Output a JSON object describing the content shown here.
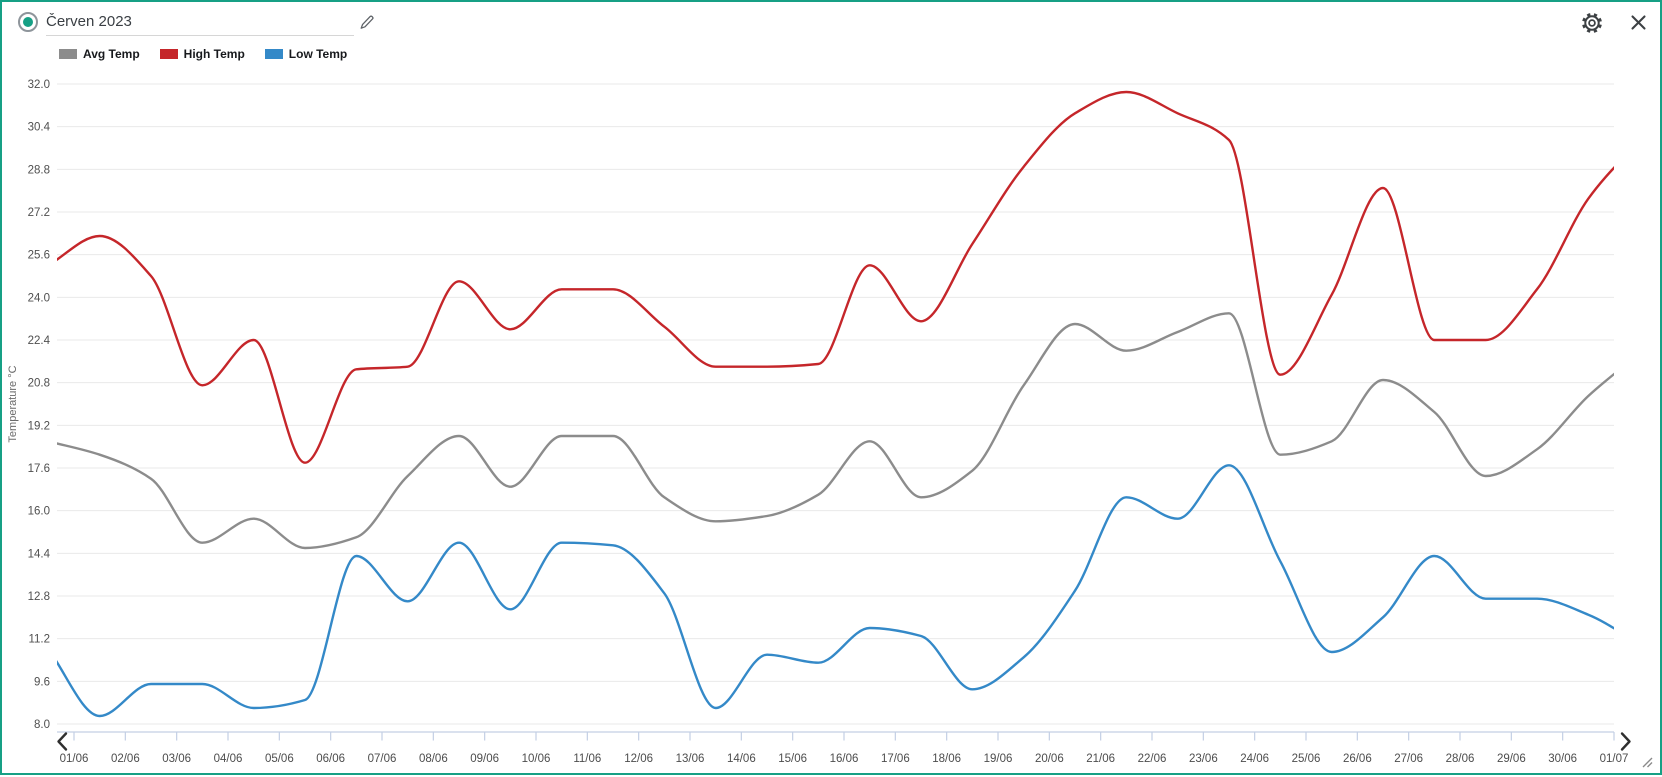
{
  "header": {
    "title_value": "Červen 2023",
    "icons": {
      "marker": "radio-selected",
      "edit": "pencil",
      "settings": "gear",
      "close": "x",
      "nav_left": "chevron-left",
      "nav_right": "chevron-right",
      "resize": "diagonal-grip"
    }
  },
  "legend": {
    "items": [
      {
        "label": "Avg Temp",
        "color": "#8c8c8c"
      },
      {
        "label": "High Temp",
        "color": "#c5262a"
      },
      {
        "label": "Low Temp",
        "color": "#3489c8"
      }
    ]
  },
  "chart_data": {
    "type": "line",
    "title": "Červen 2023",
    "ylabel": "Temperature °C",
    "ylim": [
      8.0,
      32.0
    ],
    "ytick_labels": [
      "32.0",
      "30.4",
      "28.8",
      "27.2",
      "25.6",
      "24.0",
      "22.4",
      "20.8",
      "19.2",
      "17.6",
      "16.0",
      "14.4",
      "12.8",
      "11.2",
      "9.6",
      "8.0"
    ],
    "x_tick_labels": [
      "01/06",
      "02/06",
      "03/06",
      "04/06",
      "05/06",
      "06/06",
      "07/06",
      "08/06",
      "09/06",
      "10/06",
      "11/06",
      "12/06",
      "13/06",
      "14/06",
      "15/06",
      "16/06",
      "17/06",
      "18/06",
      "19/06",
      "20/06",
      "21/06",
      "22/06",
      "23/06",
      "24/06",
      "25/06",
      "26/06",
      "27/06",
      "28/06",
      "29/06",
      "30/06",
      "01/07"
    ],
    "grid": "horizontal",
    "legend_position": "top-left",
    "interpolation": "monotone",
    "series": [
      {
        "name": "Avg Temp",
        "color": "#8c8c8c",
        "values": [
          18.1,
          17.2,
          14.8,
          15.7,
          14.6,
          15.0,
          17.3,
          18.8,
          16.9,
          18.8,
          18.8,
          16.5,
          15.6,
          15.8,
          16.6,
          18.6,
          16.5,
          17.5,
          20.7,
          23.0,
          22.0,
          22.7,
          23.4,
          18.1,
          18.6,
          20.9,
          19.7,
          17.3,
          18.3,
          20.3
        ],
        "lead_in": 18.6,
        "lead_out": 21.9
      },
      {
        "name": "High Temp",
        "color": "#c5262a",
        "values": [
          26.3,
          24.8,
          20.7,
          22.4,
          17.8,
          21.3,
          21.4,
          24.6,
          22.8,
          24.3,
          24.3,
          22.9,
          21.4,
          21.4,
          21.5,
          25.2,
          23.1,
          26.0,
          28.9,
          30.9,
          31.7,
          30.9,
          29.9,
          21.1,
          24.1,
          28.1,
          22.4,
          22.4,
          24.3,
          27.7
        ],
        "lead_in": 25.2,
        "lead_out": 29.9
      },
      {
        "name": "Low Temp",
        "color": "#3489c8",
        "values": [
          8.3,
          9.5,
          9.5,
          8.6,
          8.9,
          14.3,
          12.6,
          14.8,
          12.3,
          14.8,
          14.7,
          12.9,
          8.6,
          10.6,
          10.3,
          11.6,
          11.3,
          9.3,
          10.5,
          13.0,
          16.5,
          15.7,
          17.7,
          14.1,
          10.7,
          12.0,
          14.3,
          12.7,
          12.7,
          12.1
        ],
        "lead_in": 10.8,
        "lead_out": 11.0
      }
    ]
  }
}
